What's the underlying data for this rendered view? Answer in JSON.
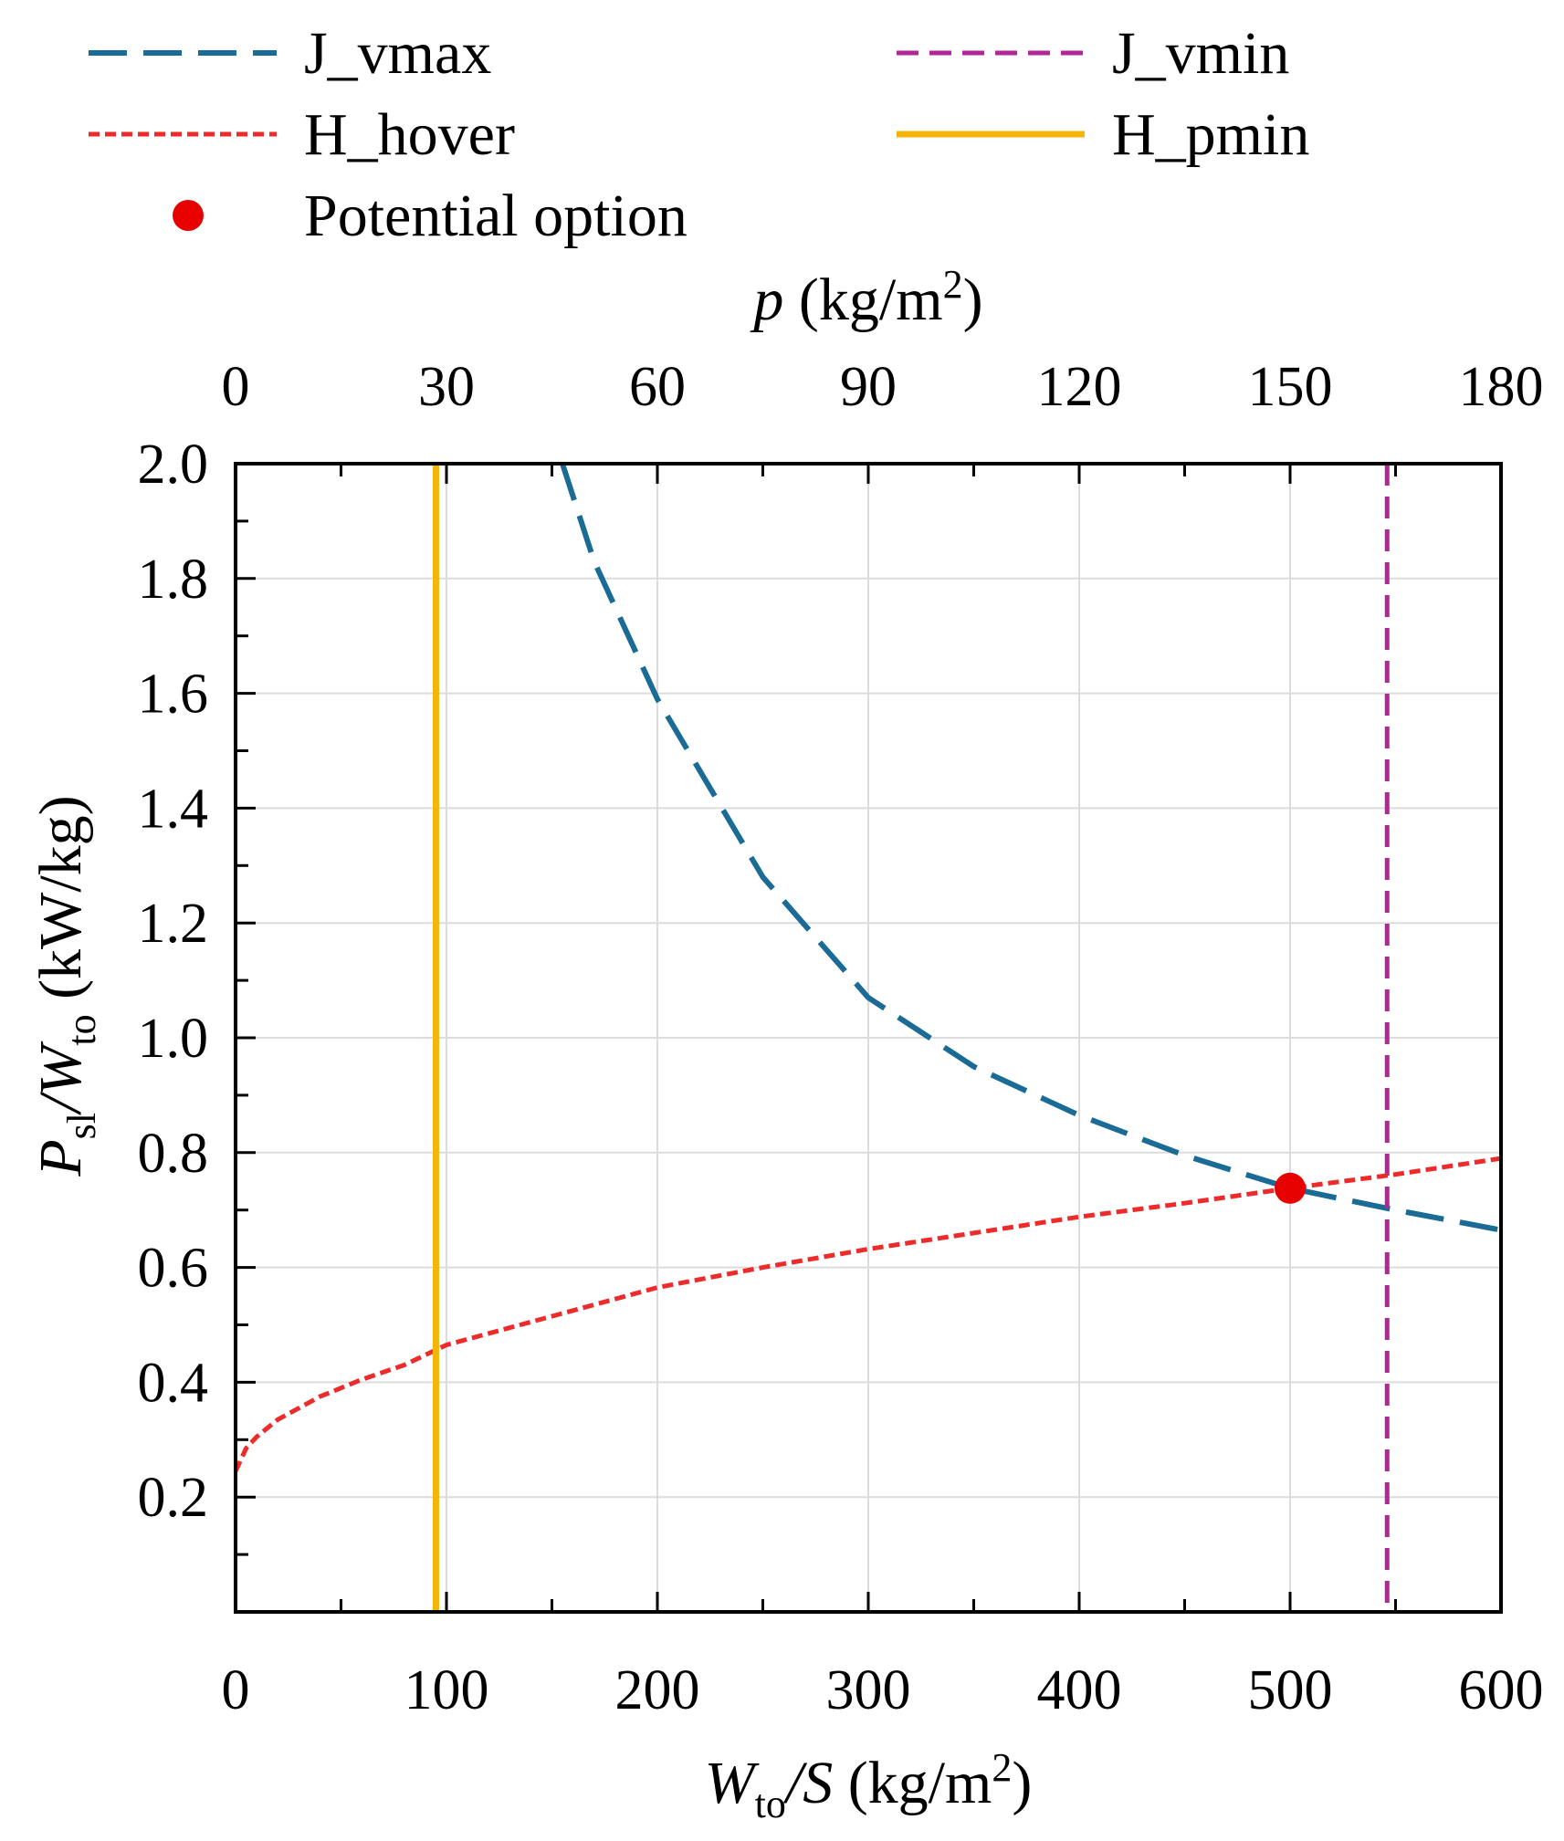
{
  "chart_data": {
    "type": "line",
    "x_bottom": {
      "label_main": "W",
      "label_sub": "to",
      "label_rest": "/S",
      "label_unit": " (kg/m",
      "label_sup": "2",
      "label_close": ")",
      "range": [
        0,
        600
      ],
      "ticks": [
        0,
        100,
        200,
        300,
        400,
        500,
        600
      ],
      "tick_labels": [
        "0",
        "100",
        "200",
        "300",
        "400",
        "500",
        "600"
      ]
    },
    "x_top": {
      "label_main": "p",
      "label_unit": " (kg/m",
      "label_sup": "2",
      "label_close": ")",
      "range": [
        0,
        180
      ],
      "ticks": [
        0,
        30,
        60,
        90,
        120,
        150,
        180
      ],
      "tick_labels": [
        "0",
        "30",
        "60",
        "90",
        "120",
        "150",
        "180"
      ]
    },
    "y": {
      "label_p": "P",
      "label_sl": "sl",
      "label_mid": "/W",
      "label_to": "to",
      "label_unit": " (kW/kg)",
      "range": [
        0,
        2.0
      ],
      "ticks": [
        0.2,
        0.4,
        0.6,
        0.8,
        1.0,
        1.2,
        1.4,
        1.6,
        1.8,
        2.0
      ],
      "tick_labels": [
        "0.2",
        "0.4",
        "0.6",
        "0.8",
        "1.0",
        "1.2",
        "1.4",
        "1.6",
        "1.8",
        "2.0"
      ]
    },
    "grid": true,
    "series": [
      {
        "name": "J_vmax",
        "color": "#1a6b96",
        "style": "long-dash",
        "kind": "curve",
        "x": [
          155,
          170,
          200,
          250,
          300,
          350,
          400,
          450,
          500,
          550,
          600
        ],
        "y": [
          2.0,
          1.83,
          1.59,
          1.28,
          1.07,
          0.95,
          0.865,
          0.795,
          0.738,
          0.7,
          0.665
        ]
      },
      {
        "name": "J_vmin",
        "color": "#b0279a",
        "style": "dash",
        "kind": "vertical",
        "x_value": 546
      },
      {
        "name": "H_hover",
        "color": "#ee2b2b",
        "style": "dot",
        "kind": "curve",
        "x": [
          0,
          5,
          10,
          20,
          40,
          60,
          80,
          100,
          150,
          200,
          250,
          300,
          350,
          400,
          450,
          500,
          550,
          600
        ],
        "y": [
          0.245,
          0.285,
          0.305,
          0.335,
          0.375,
          0.405,
          0.43,
          0.465,
          0.515,
          0.565,
          0.6,
          0.632,
          0.66,
          0.688,
          0.712,
          0.738,
          0.762,
          0.79
        ]
      },
      {
        "name": "H_pmin",
        "color": "#f5b40a",
        "style": "solid",
        "kind": "vertical",
        "x_value": 95
      }
    ],
    "points": [
      {
        "name": "Potential option",
        "color": "#e60000",
        "x": 500,
        "y": 0.738
      }
    ],
    "legend": {
      "position": "top",
      "entries": [
        "J_vmax",
        "J_vmin",
        "H_hover",
        "H_pmin",
        "Potential option"
      ]
    }
  }
}
